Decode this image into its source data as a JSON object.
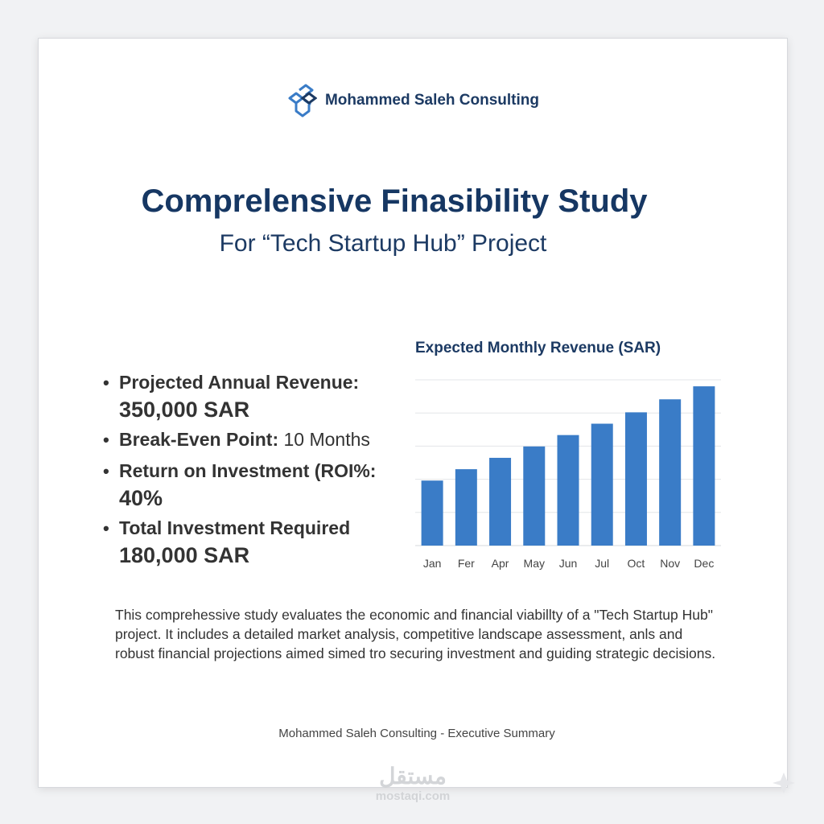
{
  "brand": {
    "name": "Mohammed Saleh Consulting"
  },
  "header": {
    "title": "Comprelensive Finasibility Study",
    "subtitle": "For “Tech Startup Hub” Project"
  },
  "metrics": [
    {
      "label": "Projected Annual Revenue:",
      "value": "350,000 SAR"
    },
    {
      "label": "Break-Even Point:",
      "inline_value": "10 Months"
    },
    {
      "label": "Return on Investment (ROI%:",
      "value": "40%"
    },
    {
      "label": "Total Investment Required",
      "value": "180,000 SAR"
    }
  ],
  "summary": "This comprehessive study evaluates the economic and financial viabillty of a \"Tech Startup Hub\" project. It includes a detailed market analysis, competitive landscape assessment, anls and robust financial projections aimed simed tro securing investment and guiding strategic decisions.",
  "footer": {
    "text": "Mohammed Saleh Consulting - Executive Summary"
  },
  "watermark": {
    "main": "مستقل",
    "sub": "mostaqi.com"
  },
  "colors": {
    "primary": "#163763",
    "bar": "#3a7cc7",
    "text": "#333333"
  },
  "chart_data": {
    "type": "bar",
    "title": "Expected Monthly Revenue (SAR)",
    "categories": [
      "Jan",
      "Fer",
      "Apr",
      "May",
      "Jun",
      "Jul",
      "Oct",
      "Nov",
      "Dec"
    ],
    "values": [
      20,
      23.5,
      27,
      30.5,
      34,
      37.5,
      41,
      45,
      49
    ],
    "ylim": [
      0,
      51
    ],
    "grid": true,
    "xlabel": "",
    "ylabel": ""
  }
}
